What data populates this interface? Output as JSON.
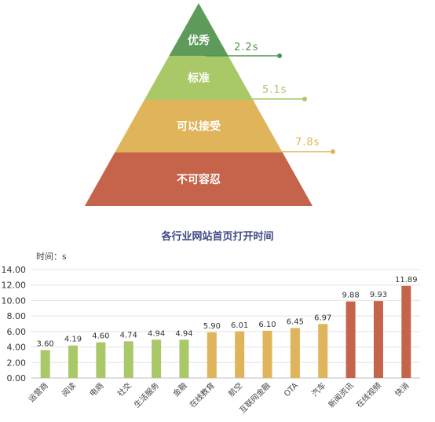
{
  "pyramid": {
    "tiers": [
      {
        "label": "优秀",
        "color": "#5e9a5a"
      },
      {
        "label": "标准",
        "color": "#a9c968"
      },
      {
        "label": "可以接受",
        "color": "#e0b45a"
      },
      {
        "label": "不可容忍",
        "color": "#c5644b"
      }
    ],
    "thresholds": [
      {
        "label": "2.2s",
        "color": "#4f9553"
      },
      {
        "label": "5.1s",
        "color": "#a9c968"
      },
      {
        "label": "7.8s",
        "color": "#e0b45a"
      }
    ]
  },
  "chart_data": {
    "type": "bar",
    "title": "各行业网站首页打开时间",
    "ylabel": "时间：s",
    "xlabel": "",
    "ylim": [
      0,
      14
    ],
    "yticks": [
      "0.00",
      "2.00",
      "4.00",
      "6.00",
      "8.00",
      "10.00",
      "12.00",
      "14.00"
    ],
    "grid": true,
    "categories": [
      "运营商",
      "阅读",
      "电商",
      "社交",
      "生活服务",
      "金融",
      "在线教育",
      "航空",
      "互联网金融",
      "OTA",
      "汽车",
      "新闻资讯",
      "在线视频",
      "快消"
    ],
    "values": [
      3.6,
      4.19,
      4.6,
      4.74,
      4.94,
      4.94,
      5.9,
      6.01,
      6.1,
      6.45,
      6.97,
      9.88,
      9.93,
      11.89
    ],
    "value_labels": [
      "3.60",
      "4.19",
      "4.60",
      "4.74",
      "4.94",
      "4.94",
      "5.90",
      "6.01",
      "6.10",
      "6.45",
      "6.97",
      "9.88",
      "9.93",
      "11.89"
    ],
    "bar_colors": [
      "#a9c968",
      "#a9c968",
      "#a9c968",
      "#a9c968",
      "#a9c968",
      "#a9c968",
      "#e0b45a",
      "#e0b45a",
      "#e0b45a",
      "#e0b45a",
      "#e0b45a",
      "#c5644b",
      "#c5644b",
      "#c5644b"
    ]
  }
}
